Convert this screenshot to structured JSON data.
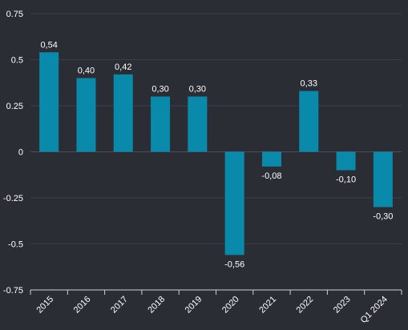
{
  "chart_data": {
    "type": "bar",
    "title": "",
    "xlabel": "",
    "ylabel": "",
    "categories": [
      "2015",
      "2016",
      "2017",
      "2018",
      "2019",
      "2020",
      "2021",
      "2022",
      "2023",
      "Q1 2024"
    ],
    "values": [
      0.54,
      0.4,
      0.42,
      0.3,
      0.3,
      -0.56,
      -0.08,
      0.33,
      -0.1,
      -0.3
    ],
    "data_labels": [
      "0,54",
      "0,40",
      "0,42",
      "0,30",
      "0,30",
      "-0,56",
      "-0,08",
      "0,33",
      "-0,10",
      "-0,30"
    ],
    "ylim": [
      -0.75,
      0.75
    ],
    "yticks": [
      0.75,
      0.5,
      0.25,
      0,
      -0.25,
      -0.5,
      -0.75
    ],
    "ytick_labels": [
      "0.75",
      "0.5",
      "0.25",
      "0",
      "-0.25",
      "-0.5",
      "-0.75"
    ],
    "grid": true,
    "legend": "none",
    "colors": {
      "bar": "#0a8aab",
      "background": "#2b2d35",
      "grid": "#3b3e47",
      "text": "#ffffff"
    }
  }
}
